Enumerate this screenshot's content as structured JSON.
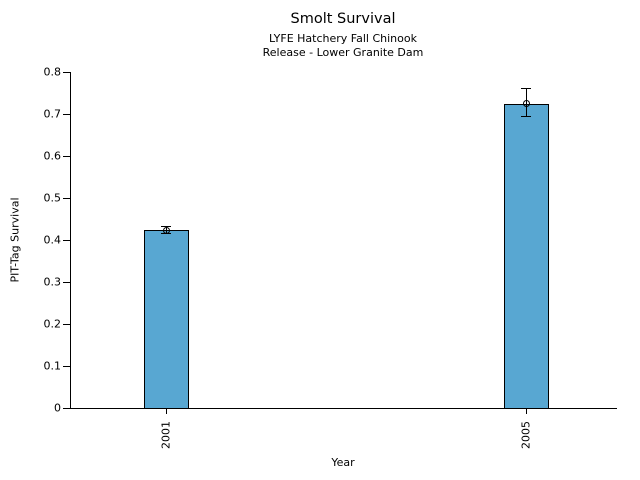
{
  "figure": {
    "background": "#ffffff"
  },
  "chart_data": {
    "type": "bar",
    "title": "Smolt Survival",
    "subtitle": [
      "LYFE Hatchery Fall Chinook",
      "Release - Lower Granite Dam"
    ],
    "xlabel": "Year",
    "ylabel": "PIT-Tag Survival",
    "categories": [
      "2001",
      "2005"
    ],
    "values": [
      0.423,
      0.725
    ],
    "error_low": [
      0.415,
      0.694
    ],
    "error_high": [
      0.431,
      0.761
    ],
    "ylim": [
      0,
      0.8
    ],
    "yticks": [
      0,
      0.1,
      0.2,
      0.3,
      0.4,
      0.5,
      0.6,
      0.7,
      0.8
    ],
    "ytick_labels": [
      "0",
      "0.1",
      "0.2",
      "0.3",
      "0.4",
      "0.5",
      "0.6",
      "0.7",
      "0.8"
    ],
    "grid": false,
    "legend": null,
    "bar_color": "#58A7D2",
    "bar_edge_color": "#000000",
    "error_color": "#000000",
    "error_marker": "open-circle",
    "x_tick_rotation": 90
  }
}
